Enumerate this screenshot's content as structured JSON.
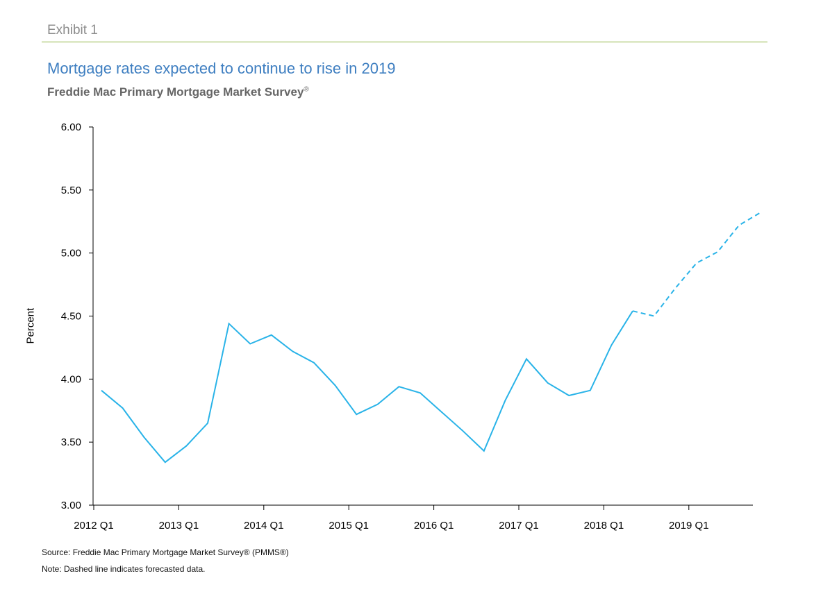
{
  "header": {
    "exhibit": "Exhibit 1",
    "title": "Mortgage rates expected to continue to rise in 2019",
    "subtitle": "Freddie Mac Primary Mortgage Market Survey",
    "subtitle_mark": "®"
  },
  "footer": {
    "source": "Source: Freddie Mac Primary Mortgage Market Survey® (PMMS®)",
    "note": "Note: Dashed line indicates forecasted data."
  },
  "colors": {
    "title": "#3f7fc1",
    "rule": "#8db33f",
    "series": "#29b3e8",
    "text_gray": "#666666"
  },
  "chart_data": {
    "type": "line",
    "ylabel": "Percent",
    "xlabel": "",
    "ylim": [
      3.0,
      6.0
    ],
    "yticks": [
      "3.00",
      "3.50",
      "4.00",
      "4.50",
      "5.00",
      "5.50",
      "6.00"
    ],
    "x_ticks": [
      "2012 Q1",
      "2013 Q1",
      "2014 Q1",
      "2015 Q1",
      "2016 Q1",
      "2017 Q1",
      "2018 Q1",
      "2019 Q1"
    ],
    "grid": false,
    "legend": "none",
    "x": [
      "2012 Q1",
      "2012 Q2",
      "2012 Q3",
      "2012 Q4",
      "2013 Q1",
      "2013 Q2",
      "2013 Q3",
      "2013 Q4",
      "2014 Q1",
      "2014 Q2",
      "2014 Q3",
      "2014 Q4",
      "2015 Q1",
      "2015 Q2",
      "2015 Q3",
      "2015 Q4",
      "2016 Q1",
      "2016 Q2",
      "2016 Q3",
      "2016 Q4",
      "2017 Q1",
      "2017 Q2",
      "2017 Q3",
      "2017 Q4",
      "2018 Q1",
      "2018 Q2",
      "2018 Q3",
      "2018 Q4",
      "2019 Q1",
      "2019 Q2",
      "2019 Q3",
      "2019 Q4"
    ],
    "series": [
      {
        "style": "solid",
        "values": [
          3.91,
          3.77,
          3.54,
          3.34,
          3.47,
          3.65,
          4.44,
          4.28,
          4.35,
          4.22,
          4.13,
          3.95,
          3.72,
          3.8,
          3.94,
          3.89,
          3.74,
          3.59,
          3.43,
          3.83,
          4.16,
          3.97,
          3.87,
          3.91,
          4.27,
          4.54,
          null,
          null,
          null,
          null,
          null,
          null
        ]
      },
      {
        "style": "dashed",
        "values": [
          null,
          null,
          null,
          null,
          null,
          null,
          null,
          null,
          null,
          null,
          null,
          null,
          null,
          null,
          null,
          null,
          null,
          null,
          null,
          null,
          null,
          null,
          null,
          null,
          null,
          4.54,
          4.5,
          4.72,
          4.92,
          5.01,
          5.22,
          5.32
        ]
      }
    ]
  }
}
